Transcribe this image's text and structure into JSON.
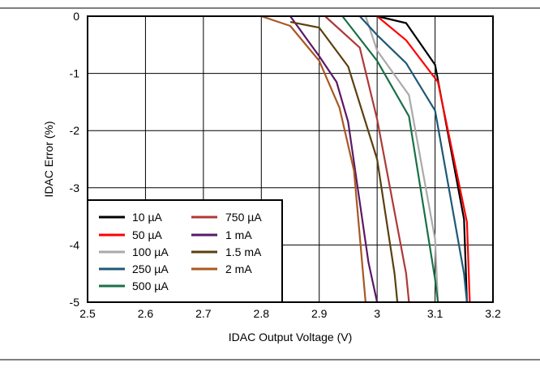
{
  "chart_data": {
    "type": "line",
    "title": "",
    "xlabel": "IDAC Output Voltage (V)",
    "ylabel": "IDAC Error (%)",
    "xlim": [
      2.5,
      3.2
    ],
    "ylim": [
      -5,
      0
    ],
    "x_ticks": [
      2.5,
      2.6,
      2.7,
      2.8,
      2.9,
      3.0,
      3.1,
      3.2
    ],
    "x_tick_labels": [
      "2.5",
      "2.6",
      "2.7",
      "2.8",
      "2.9",
      "3",
      "3.1",
      "3.2"
    ],
    "y_ticks": [
      0,
      -1,
      -2,
      -3,
      -4,
      -5
    ],
    "y_tick_labels": [
      "0",
      "-1",
      "-2",
      "-3",
      "-4",
      "-5"
    ],
    "grid": true,
    "legend_placement": "bottom-left",
    "series": [
      {
        "name": "10 µA",
        "color": "#000000",
        "x": [
          3.0,
          3.05,
          3.1,
          3.15,
          3.155
        ],
        "y": [
          0,
          -0.12,
          -0.85,
          -3.55,
          -5
        ]
      },
      {
        "name": "50 µA",
        "color": "#ff0000",
        "x": [
          3.0,
          3.05,
          3.105,
          3.155,
          3.16
        ],
        "y": [
          0,
          -0.42,
          -1.15,
          -3.6,
          -5
        ]
      },
      {
        "name": "100 µA",
        "color": "#aaaaaa",
        "x": [
          2.98,
          3.0,
          3.055,
          3.1,
          3.105
        ],
        "y": [
          0,
          -0.6,
          -1.38,
          -3.9,
          -5
        ]
      },
      {
        "name": "250 µA",
        "color": "#1e5878",
        "x": [
          2.97,
          3.0,
          3.05,
          3.1,
          3.15,
          3.155
        ],
        "y": [
          0,
          -0.33,
          -0.82,
          -1.65,
          -4.5,
          -5
        ]
      },
      {
        "name": "500 µA",
        "color": "#1a7048",
        "x": [
          2.94,
          3.0,
          3.055,
          3.1,
          3.105
        ],
        "y": [
          0,
          -0.78,
          -1.75,
          -4.6,
          -5
        ]
      },
      {
        "name": "750 µA",
        "color": "#b03838",
        "x": [
          2.91,
          2.97,
          3.0,
          3.05,
          3.055
        ],
        "y": [
          0,
          -0.55,
          -1.8,
          -4.5,
          -5
        ]
      },
      {
        "name": "1 mA",
        "color": "#5a1868",
        "x": [
          2.85,
          2.9,
          2.93,
          2.95,
          2.985,
          3.0
        ],
        "y": [
          0,
          -0.7,
          -1.15,
          -1.85,
          -4.3,
          -5
        ]
      },
      {
        "name": "1.5 mA",
        "color": "#5a4010",
        "x": [
          2.85,
          2.9,
          2.95,
          3.0,
          3.03,
          3.035
        ],
        "y": [
          -0.1,
          -0.2,
          -0.88,
          -2.5,
          -4.5,
          -5
        ]
      },
      {
        "name": "2 mA",
        "color": "#a85820",
        "x": [
          2.8,
          2.85,
          2.9,
          2.935,
          2.96,
          2.98
        ],
        "y": [
          0,
          -0.17,
          -0.78,
          -1.6,
          -2.7,
          -5
        ]
      }
    ]
  }
}
